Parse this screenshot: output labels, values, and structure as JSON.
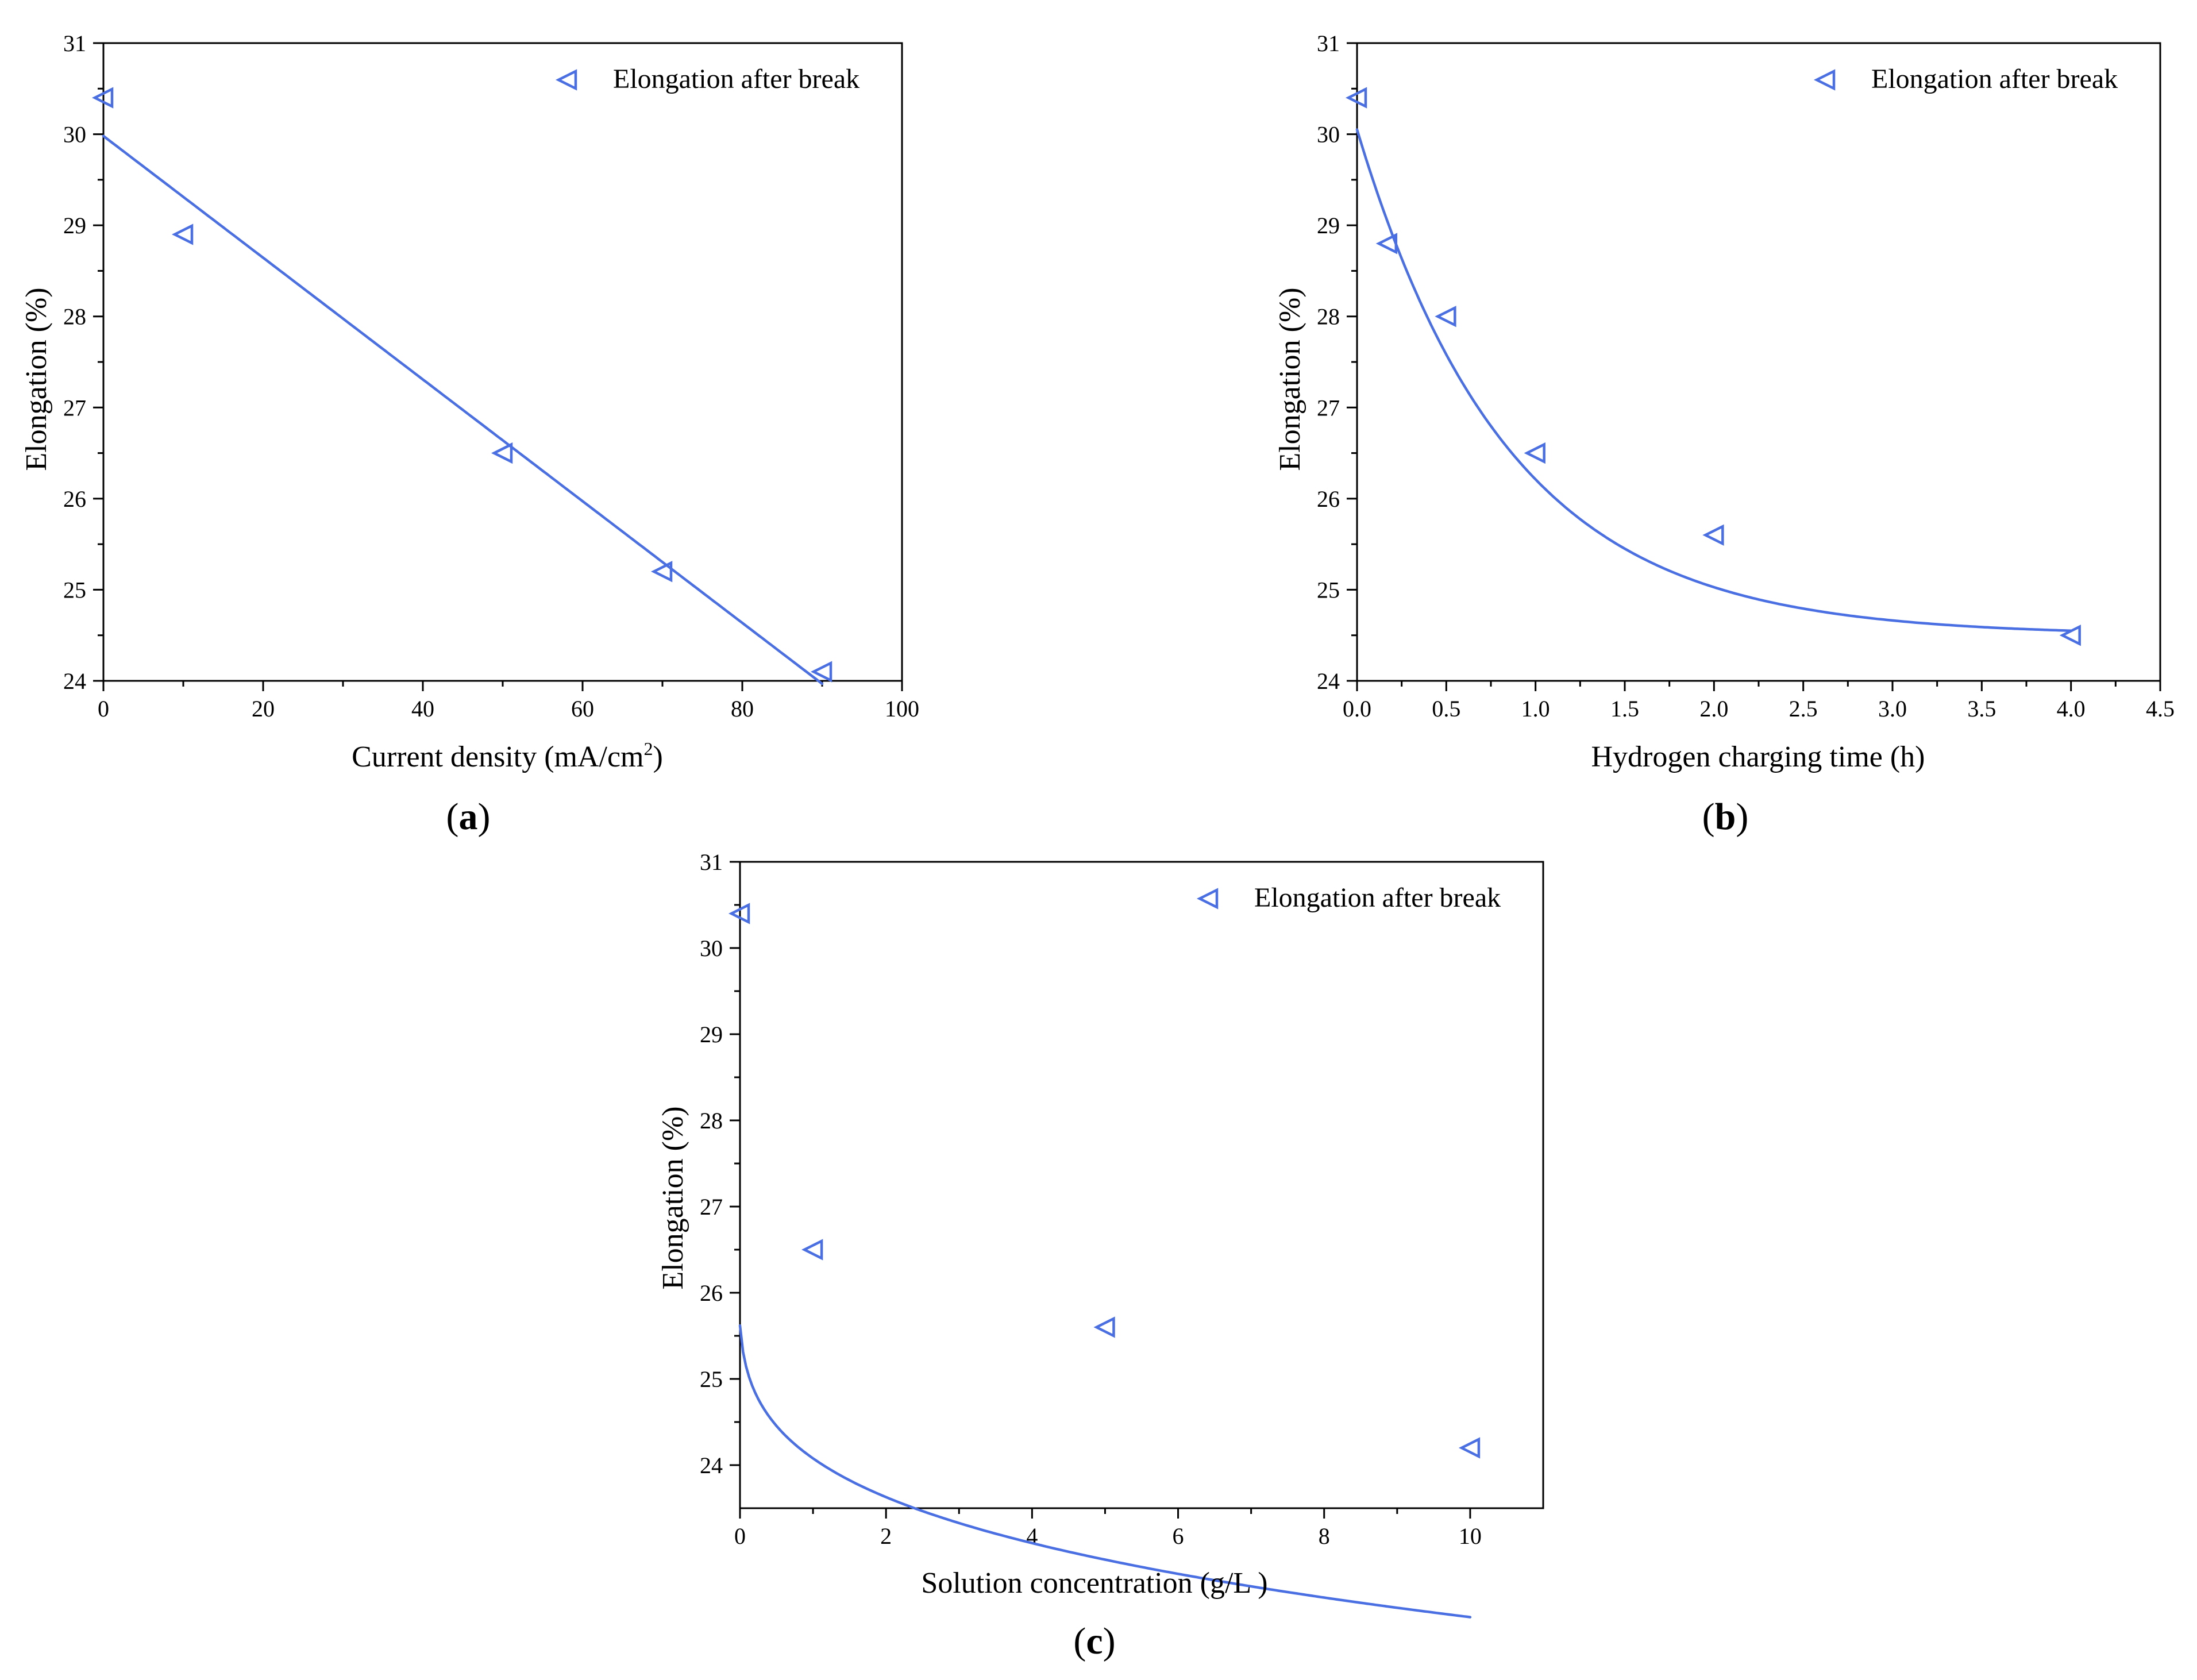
{
  "chart_data": [
    {
      "id": "a",
      "type": "scatter",
      "panel_label": "a",
      "xlabel": "Current density (mA/cm",
      "xlabel_sup": "2",
      "xlabel_suffix": ")",
      "ylabel": "Elongation (%)",
      "xlim": [
        0,
        100
      ],
      "ylim": [
        24,
        31
      ],
      "xticks": [
        0,
        20,
        40,
        60,
        80,
        100
      ],
      "xtick_labels": [
        "0",
        "20",
        "40",
        "60",
        "80",
        "100"
      ],
      "yticks": [
        24,
        25,
        26,
        27,
        28,
        29,
        30,
        31
      ],
      "ytick_labels": [
        "24",
        "25",
        "26",
        "27",
        "28",
        "29",
        "30",
        "31"
      ],
      "legend": "Elongation after break",
      "legend_position": "top-right",
      "color": "#4a6fe3",
      "series": [
        {
          "name": "Elongation after break",
          "x": [
            0,
            10,
            50,
            70,
            90
          ],
          "y": [
            30.4,
            28.9,
            26.5,
            25.2,
            24.1
          ]
        }
      ],
      "fit": {
        "kind": "linear",
        "from": 0,
        "to": 90,
        "intercept": 29.98,
        "slope": -0.0668
      }
    },
    {
      "id": "b",
      "type": "scatter",
      "panel_label": "b",
      "xlabel": "Hydrogen charging time (h)",
      "xlabel_sup": "",
      "xlabel_suffix": "",
      "ylabel": "Elongation (%)",
      "xlim": [
        0,
        4.5
      ],
      "ylim": [
        24,
        31
      ],
      "xticks": [
        0,
        0.5,
        1,
        1.5,
        2,
        2.5,
        3,
        3.5,
        4,
        4.5
      ],
      "xtick_labels": [
        "0.0",
        "0.5",
        "1.0",
        "1.5",
        "2.0",
        "2.5",
        "3.0",
        "3.5",
        "4.0",
        "4.5"
      ],
      "yticks": [
        24,
        25,
        26,
        27,
        28,
        29,
        30,
        31
      ],
      "ytick_labels": [
        "24",
        "25",
        "26",
        "27",
        "28",
        "29",
        "30",
        "31"
      ],
      "legend": "Elongation after break",
      "legend_position": "top-right",
      "color": "#4a6fe3",
      "series": [
        {
          "name": "Elongation after break",
          "x": [
            0,
            0.17,
            0.5,
            1,
            2,
            4
          ],
          "y": [
            30.4,
            28.8,
            28.0,
            26.5,
            25.6,
            24.5
          ]
        }
      ],
      "fit": {
        "kind": "exponential",
        "from": 0,
        "to": 4,
        "y0": 24.5,
        "A": 5.55,
        "t": 0.85
      }
    },
    {
      "id": "c",
      "type": "scatter",
      "panel_label": "c",
      "xlabel": "Solution concentration (g/L )",
      "xlabel_sup": "",
      "xlabel_suffix": "",
      "ylabel": "Elongation (%)",
      "xlim": [
        0,
        11
      ],
      "ylim": [
        23.5,
        31
      ],
      "xticks": [
        0,
        2,
        4,
        6,
        8,
        10
      ],
      "xtick_labels": [
        "0",
        "2",
        "4",
        "6",
        "8",
        "10"
      ],
      "yticks": [
        24,
        25,
        26,
        27,
        28,
        29,
        30,
        31
      ],
      "ytick_labels": [
        "24",
        "25",
        "26",
        "27",
        "28",
        "29",
        "30",
        "31"
      ],
      "legend": "Elongation after break",
      "legend_position": "top-right",
      "color": "#4a6fe3",
      "series": [
        {
          "name": "Elongation after break",
          "x": [
            0,
            1,
            5,
            10
          ],
          "y": [
            30.4,
            26.5,
            25.6,
            24.2
          ]
        }
      ],
      "fit": {
        "kind": "power",
        "from": 0,
        "to": 10,
        "a": 26.6,
        "b": 0.24,
        "x0": 0.02,
        "offset": 2.51,
        "floor_scale": 1
      }
    }
  ]
}
